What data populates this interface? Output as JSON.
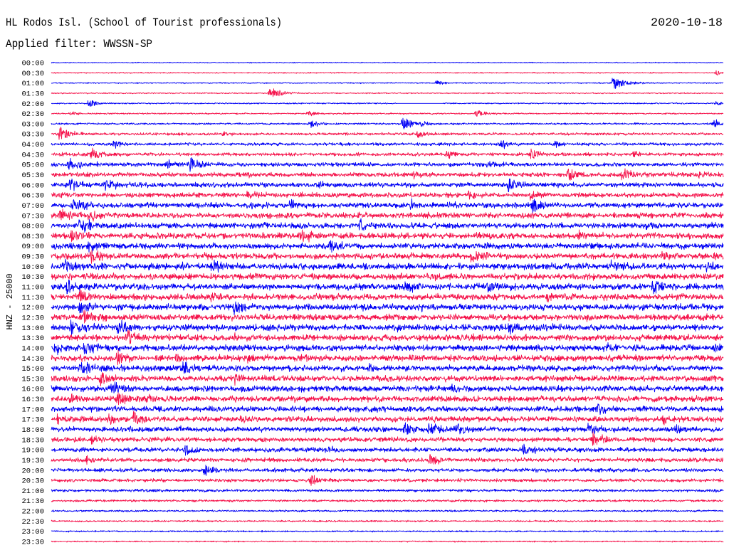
{
  "chart_data": {
    "type": "line",
    "display": "helicorder",
    "title": "HL Rodos Isl. (School of Tourist professionals)",
    "date": "2020-10-18",
    "subtitle": "Applied filter: WWSSN-SP",
    "ylabel": "HNZ - 25000",
    "minutes_per_row": 30,
    "x_range_minutes": [
      0,
      30
    ],
    "colors": {
      "even_rows": "#0000f5",
      "odd_rows": "#f5134b"
    },
    "rows": [
      "00:00",
      "00:30",
      "01:00",
      "01:30",
      "02:00",
      "02:30",
      "03:00",
      "03:30",
      "04:00",
      "04:30",
      "05:00",
      "05:30",
      "06:00",
      "06:30",
      "07:00",
      "07:30",
      "08:00",
      "08:30",
      "09:00",
      "09:30",
      "10:00",
      "10:30",
      "11:00",
      "11:30",
      "12:00",
      "12:30",
      "13:00",
      "13:30",
      "14:00",
      "14:30",
      "15:00",
      "15:30",
      "16:00",
      "16:30",
      "17:00",
      "17:30",
      "18:00",
      "18:30",
      "19:00",
      "19:30",
      "20:00",
      "20:30",
      "21:00",
      "21:30",
      "22:00",
      "22:30",
      "23:00",
      "23:30"
    ],
    "noise_level": [
      0.12,
      0.15,
      0.15,
      0.15,
      0.18,
      0.2,
      0.25,
      0.35,
      0.4,
      0.45,
      0.55,
      0.6,
      0.65,
      0.65,
      0.7,
      0.75,
      0.75,
      0.8,
      0.8,
      0.8,
      0.85,
      0.85,
      0.85,
      0.85,
      0.85,
      0.85,
      0.85,
      0.85,
      0.85,
      0.85,
      0.8,
      0.8,
      0.8,
      0.8,
      0.75,
      0.75,
      0.7,
      0.65,
      0.6,
      0.55,
      0.5,
      0.45,
      0.35,
      0.3,
      0.25,
      0.22,
      0.2,
      0.18
    ],
    "gaps": [
      {
        "row": "02:00",
        "start_minute": 15.4,
        "end_minute": 17.5
      }
    ],
    "events": [
      {
        "row": "00:30",
        "minute": 29.7,
        "strength": 0.35
      },
      {
        "row": "01:00",
        "minute": 25.1,
        "strength": 1.0
      },
      {
        "row": "01:00",
        "minute": 17.2,
        "strength": 0.45
      },
      {
        "row": "01:30",
        "minute": 9.8,
        "strength": 0.9
      },
      {
        "row": "02:00",
        "minute": 1.7,
        "strength": 0.6
      },
      {
        "row": "02:00",
        "minute": 29.7,
        "strength": 0.3
      },
      {
        "row": "02:30",
        "minute": 19.0,
        "strength": 0.6
      },
      {
        "row": "02:30",
        "minute": 11.5,
        "strength": 0.4
      },
      {
        "row": "02:30",
        "minute": 0.9,
        "strength": 0.35
      },
      {
        "row": "03:00",
        "minute": 15.7,
        "strength": 1.0
      },
      {
        "row": "03:00",
        "minute": 11.6,
        "strength": 0.6
      },
      {
        "row": "03:00",
        "minute": 29.6,
        "strength": 0.6
      },
      {
        "row": "03:00",
        "minute": 16.5,
        "strength": 0.5
      },
      {
        "row": "03:30",
        "minute": 0.4,
        "strength": 1.0
      },
      {
        "row": "03:30",
        "minute": 16.4,
        "strength": 0.6
      },
      {
        "row": "03:30",
        "minute": 7.7,
        "strength": 0.35
      },
      {
        "row": "04:00",
        "minute": 2.8,
        "strength": 0.6
      },
      {
        "row": "04:00",
        "minute": 20.1,
        "strength": 0.6
      },
      {
        "row": "04:00",
        "minute": 22.5,
        "strength": 0.5
      },
      {
        "row": "04:30",
        "minute": 1.8,
        "strength": 0.9
      },
      {
        "row": "04:30",
        "minute": 17.7,
        "strength": 0.6
      },
      {
        "row": "04:30",
        "minute": 21.4,
        "strength": 0.85
      },
      {
        "row": "04:30",
        "minute": 26.0,
        "strength": 0.4
      },
      {
        "row": "05:00",
        "minute": 0.8,
        "strength": 1.0
      },
      {
        "row": "05:00",
        "minute": 6.2,
        "strength": 1.0
      },
      {
        "row": "05:00",
        "minute": 5.2,
        "strength": 0.6
      },
      {
        "row": "05:00",
        "minute": 19.6,
        "strength": 0.5
      },
      {
        "row": "05:30",
        "minute": 23.1,
        "strength": 0.9
      },
      {
        "row": "05:30",
        "minute": 25.5,
        "strength": 0.9
      },
      {
        "row": "05:30",
        "minute": 16.2,
        "strength": 0.6
      },
      {
        "row": "05:30",
        "minute": 8.7,
        "strength": 0.5
      },
      {
        "row": "05:30",
        "minute": 28.9,
        "strength": 0.6
      },
      {
        "row": "06:00",
        "minute": 0.9,
        "strength": 1.0
      },
      {
        "row": "06:00",
        "minute": 2.4,
        "strength": 1.0
      },
      {
        "row": "06:00",
        "minute": 12.0,
        "strength": 0.6
      },
      {
        "row": "06:00",
        "minute": 20.4,
        "strength": 0.9
      },
      {
        "row": "06:30",
        "minute": 18.7,
        "strength": 0.6
      },
      {
        "row": "06:30",
        "minute": 21.4,
        "strength": 0.5
      },
      {
        "row": "06:30",
        "minute": 8.8,
        "strength": 0.5
      },
      {
        "row": "07:00",
        "minute": 1.0,
        "strength": 1.0
      },
      {
        "row": "07:00",
        "minute": 8.8,
        "strength": 0.6
      },
      {
        "row": "07:00",
        "minute": 10.7,
        "strength": 0.7
      },
      {
        "row": "07:00",
        "minute": 16.1,
        "strength": 0.6
      },
      {
        "row": "07:00",
        "minute": 21.5,
        "strength": 0.9
      },
      {
        "row": "07:00",
        "minute": 17.7,
        "strength": 0.4
      },
      {
        "row": "07:30",
        "minute": 0.4,
        "strength": 1.0
      },
      {
        "row": "07:30",
        "minute": 1.7,
        "strength": 0.9
      },
      {
        "row": "07:30",
        "minute": 16.8,
        "strength": 0.35
      },
      {
        "row": "08:00",
        "minute": 1.3,
        "strength": 1.0
      },
      {
        "row": "08:00",
        "minute": 13.8,
        "strength": 0.9
      },
      {
        "row": "08:00",
        "minute": 9.5,
        "strength": 0.4
      },
      {
        "row": "08:00",
        "minute": 26.6,
        "strength": 0.4
      },
      {
        "row": "08:30",
        "minute": 0.9,
        "strength": 1.0
      },
      {
        "row": "08:30",
        "minute": 11.2,
        "strength": 0.9
      },
      {
        "row": "08:30",
        "minute": 12.6,
        "strength": 0.6
      },
      {
        "row": "08:30",
        "minute": 23.6,
        "strength": 0.5
      },
      {
        "row": "09:00",
        "minute": 1.7,
        "strength": 1.0
      },
      {
        "row": "09:00",
        "minute": 12.5,
        "strength": 0.9
      },
      {
        "row": "09:00",
        "minute": 24.1,
        "strength": 0.4
      },
      {
        "row": "09:30",
        "minute": 1.8,
        "strength": 1.0
      },
      {
        "row": "09:30",
        "minute": 18.8,
        "strength": 1.0
      },
      {
        "row": "09:30",
        "minute": 27.3,
        "strength": 0.6
      },
      {
        "row": "09:30",
        "minute": 29.6,
        "strength": 0.6
      },
      {
        "row": "09:30",
        "minute": 6.9,
        "strength": 0.4
      },
      {
        "row": "10:00",
        "minute": 0.6,
        "strength": 1.0
      },
      {
        "row": "10:00",
        "minute": 7.2,
        "strength": 0.9
      },
      {
        "row": "10:00",
        "minute": 5.9,
        "strength": 0.6
      },
      {
        "row": "10:00",
        "minute": 25.0,
        "strength": 0.9
      },
      {
        "row": "10:00",
        "minute": 29.3,
        "strength": 0.6
      },
      {
        "row": "10:30",
        "minute": 1.8,
        "strength": 0.6
      },
      {
        "row": "10:30",
        "minute": 17.2,
        "strength": 0.4
      },
      {
        "row": "11:00",
        "minute": 0.7,
        "strength": 1.0
      },
      {
        "row": "11:00",
        "minute": 15.8,
        "strength": 0.9
      },
      {
        "row": "11:00",
        "minute": 19.5,
        "strength": 0.9
      },
      {
        "row": "11:00",
        "minute": 26.9,
        "strength": 1.0
      },
      {
        "row": "11:30",
        "minute": 1.3,
        "strength": 1.0
      },
      {
        "row": "11:30",
        "minute": 7.2,
        "strength": 0.6
      },
      {
        "row": "11:30",
        "minute": 22.2,
        "strength": 0.6
      },
      {
        "row": "12:00",
        "minute": 1.3,
        "strength": 1.0
      },
      {
        "row": "12:00",
        "minute": 8.2,
        "strength": 0.9
      },
      {
        "row": "12:00",
        "minute": 16.5,
        "strength": 0.4
      },
      {
        "row": "12:30",
        "minute": 1.5,
        "strength": 1.0
      },
      {
        "row": "12:30",
        "minute": 23.9,
        "strength": 0.6
      },
      {
        "row": "12:30",
        "minute": 10.7,
        "strength": 0.4
      },
      {
        "row": "13:00",
        "minute": 0.9,
        "strength": 1.0
      },
      {
        "row": "13:00",
        "minute": 3.0,
        "strength": 1.0
      },
      {
        "row": "13:00",
        "minute": 15.3,
        "strength": 0.6
      },
      {
        "row": "13:00",
        "minute": 20.5,
        "strength": 0.9
      },
      {
        "row": "13:30",
        "minute": 3.4,
        "strength": 1.0
      },
      {
        "row": "13:30",
        "minute": 8.2,
        "strength": 0.4
      },
      {
        "row": "14:00",
        "minute": 0.2,
        "strength": 0.7
      },
      {
        "row": "14:00",
        "minute": 1.5,
        "strength": 1.0
      },
      {
        "row": "14:00",
        "minute": 24.7,
        "strength": 0.6
      },
      {
        "row": "14:00",
        "minute": 29.6,
        "strength": 0.6
      },
      {
        "row": "14:30",
        "minute": 3.0,
        "strength": 1.0
      },
      {
        "row": "14:30",
        "minute": 5.6,
        "strength": 0.6
      },
      {
        "row": "14:30",
        "minute": 8.8,
        "strength": 0.4
      },
      {
        "row": "15:00",
        "minute": 1.3,
        "strength": 1.0
      },
      {
        "row": "15:00",
        "minute": 5.9,
        "strength": 0.9
      },
      {
        "row": "15:00",
        "minute": 14.2,
        "strength": 0.4
      },
      {
        "row": "15:30",
        "minute": 2.2,
        "strength": 1.0
      },
      {
        "row": "15:30",
        "minute": 8.2,
        "strength": 0.6
      },
      {
        "row": "16:00",
        "minute": 2.7,
        "strength": 1.0
      },
      {
        "row": "16:00",
        "minute": 17.9,
        "strength": 0.6
      },
      {
        "row": "16:30",
        "minute": 0.9,
        "strength": 0.6
      },
      {
        "row": "16:30",
        "minute": 3.0,
        "strength": 1.0
      },
      {
        "row": "16:30",
        "minute": 4.2,
        "strength": 0.6
      },
      {
        "row": "17:00",
        "minute": 24.4,
        "strength": 0.9
      },
      {
        "row": "17:00",
        "minute": 14.2,
        "strength": 0.4
      },
      {
        "row": "17:30",
        "minute": 0.3,
        "strength": 0.6
      },
      {
        "row": "17:30",
        "minute": 2.6,
        "strength": 0.6
      },
      {
        "row": "17:30",
        "minute": 3.7,
        "strength": 1.0
      },
      {
        "row": "17:30",
        "minute": 8.5,
        "strength": 0.6
      },
      {
        "row": "17:30",
        "minute": 27.3,
        "strength": 0.6
      },
      {
        "row": "18:00",
        "minute": 5.7,
        "strength": 0.6
      },
      {
        "row": "18:00",
        "minute": 15.8,
        "strength": 1.0
      },
      {
        "row": "18:00",
        "minute": 16.9,
        "strength": 1.0
      },
      {
        "row": "18:00",
        "minute": 18.1,
        "strength": 0.9
      },
      {
        "row": "18:00",
        "minute": 24.0,
        "strength": 0.9
      },
      {
        "row": "18:00",
        "minute": 27.9,
        "strength": 0.5
      },
      {
        "row": "18:30",
        "minute": 24.2,
        "strength": 1.0
      },
      {
        "row": "18:30",
        "minute": 1.8,
        "strength": 0.5
      },
      {
        "row": "19:00",
        "minute": 6.0,
        "strength": 0.9
      },
      {
        "row": "19:00",
        "minute": 21.1,
        "strength": 0.9
      },
      {
        "row": "19:00",
        "minute": 12.3,
        "strength": 0.4
      },
      {
        "row": "19:30",
        "minute": 1.6,
        "strength": 0.6
      },
      {
        "row": "19:30",
        "minute": 16.9,
        "strength": 0.9
      },
      {
        "row": "20:00",
        "minute": 6.8,
        "strength": 0.9
      },
      {
        "row": "20:30",
        "minute": 11.6,
        "strength": 0.8
      },
      {
        "row": "21:00",
        "minute": 29.6,
        "strength": 0.3
      }
    ]
  }
}
